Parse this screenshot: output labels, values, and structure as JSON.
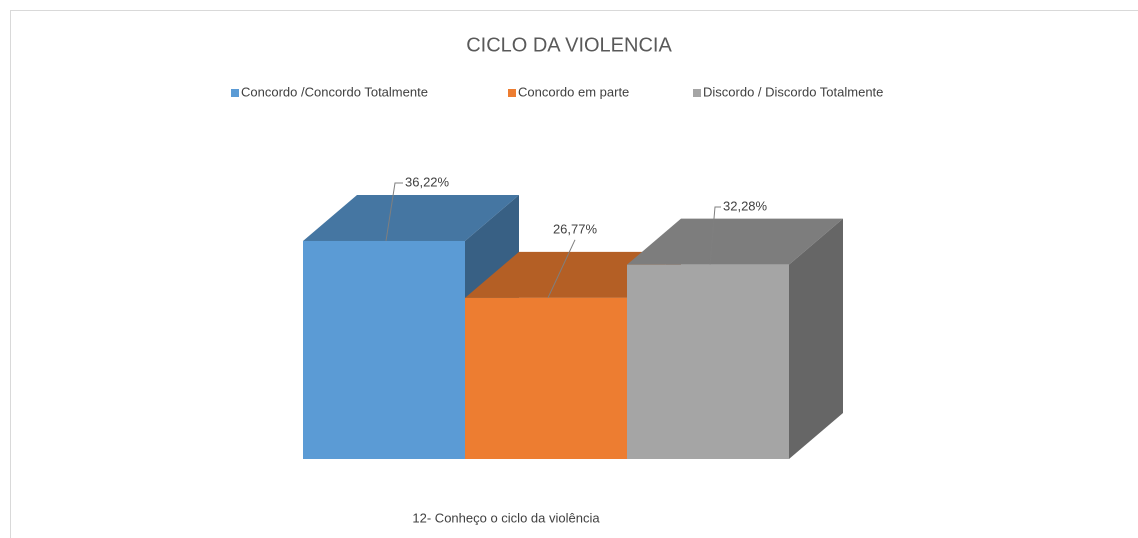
{
  "chart_data": {
    "type": "bar3d",
    "title": "CICLO DA VIOLENCIA",
    "categories": [
      "12- Conheço o ciclo da violência"
    ],
    "series": [
      {
        "name": "Concordo /Concordo Totalmente",
        "color": "#5b9bd5",
        "values": [
          36.22
        ],
        "value_labels": [
          "36,22%"
        ]
      },
      {
        "name": "Concordo em parte",
        "color": "#ed7d31",
        "values": [
          26.77
        ],
        "value_labels": [
          "26,77%"
        ]
      },
      {
        "name": "Discordo / Discordo Totalmente",
        "color": "#a5a5a5",
        "values": [
          32.28
        ],
        "value_labels": [
          "32,28%"
        ]
      }
    ],
    "legend": "top"
  }
}
